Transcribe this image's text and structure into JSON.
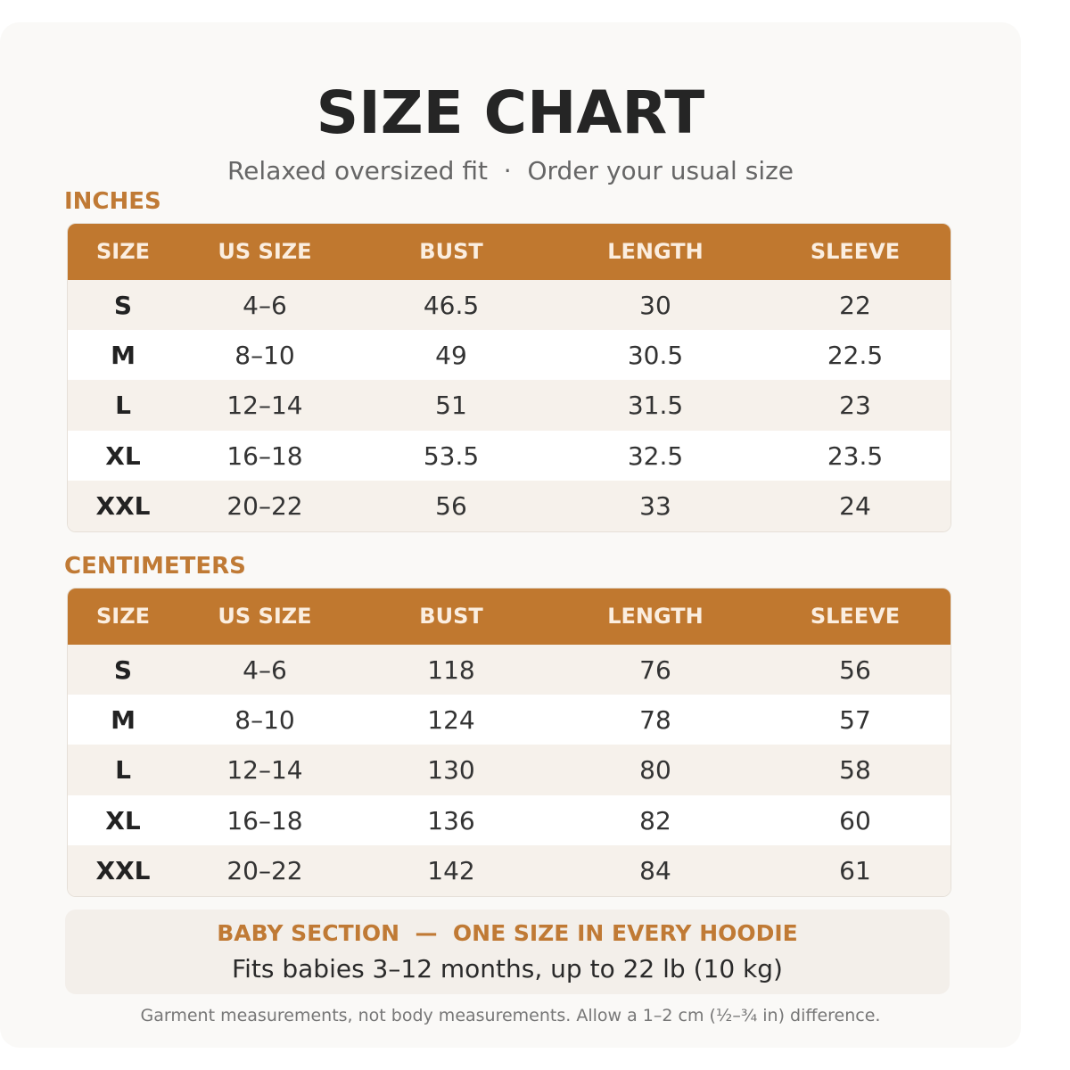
{
  "header": {
    "title": "SIZE CHART",
    "subtitle": "Relaxed oversized fit  ·  Order your usual size"
  },
  "tables": [
    {
      "label": "INCHES",
      "columns": [
        "SIZE",
        "US SIZE",
        "BUST",
        "LENGTH",
        "SLEEVE"
      ],
      "rows": [
        [
          "S",
          "4–6",
          "46.5",
          "30",
          "22"
        ],
        [
          "M",
          "8–10",
          "49",
          "30.5",
          "22.5"
        ],
        [
          "L",
          "12–14",
          "51",
          "31.5",
          "23"
        ],
        [
          "XL",
          "16–18",
          "53.5",
          "32.5",
          "23.5"
        ],
        [
          "XXL",
          "20–22",
          "56",
          "33",
          "24"
        ]
      ]
    },
    {
      "label": "CENTIMETERS",
      "columns": [
        "SIZE",
        "US SIZE",
        "BUST",
        "LENGTH",
        "SLEEVE"
      ],
      "rows": [
        [
          "S",
          "4–6",
          "118",
          "76",
          "56"
        ],
        [
          "M",
          "8–10",
          "124",
          "78",
          "57"
        ],
        [
          "L",
          "12–14",
          "130",
          "80",
          "58"
        ],
        [
          "XL",
          "16–18",
          "136",
          "82",
          "60"
        ],
        [
          "XXL",
          "20–22",
          "142",
          "84",
          "61"
        ]
      ]
    }
  ],
  "baby": {
    "heading": "BABY SECTION  —  ONE SIZE IN EVERY HOODIE",
    "text": "Fits babies 3–12 months, up to 22 lb (10 kg)"
  },
  "footnote": "Garment measurements, not body measurements. Allow a 1–2 cm (½–¾ in) difference."
}
